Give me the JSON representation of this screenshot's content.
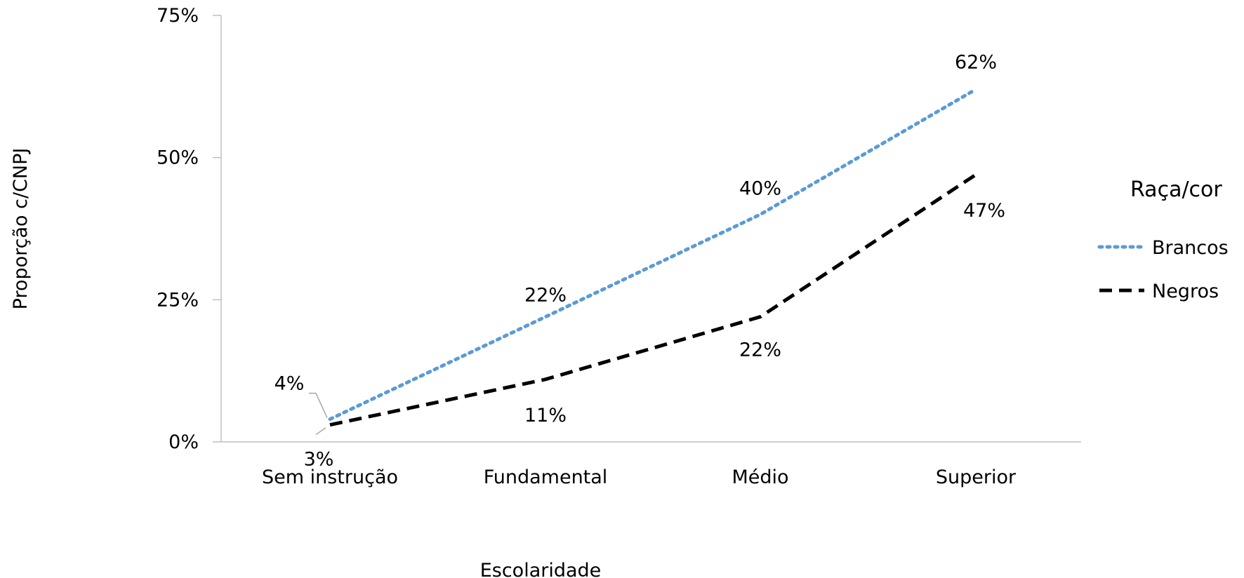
{
  "chart_data": {
    "type": "line",
    "title": "",
    "xlabel": "Escolaridade",
    "ylabel": "Proporção c/CNPJ",
    "categories": [
      "Sem instrução",
      "Fundamental",
      "Médio",
      "Superior"
    ],
    "ylim": [
      0,
      0.75
    ],
    "yticks": [
      0,
      0.25,
      0.5,
      0.75
    ],
    "ytick_labels": [
      "0%",
      "25%",
      "50%",
      "75%"
    ],
    "grid": false,
    "legend": {
      "title": "Raça/cor",
      "placement": "right"
    },
    "series": [
      {
        "name": "Brancos",
        "values": [
          0.04,
          0.22,
          0.4,
          0.62
        ],
        "labels": [
          "4%",
          "22%",
          "40%",
          "62%"
        ],
        "color": "#5B9BD5",
        "style": "dotted"
      },
      {
        "name": "Negros",
        "values": [
          0.03,
          0.11,
          0.22,
          0.47
        ],
        "labels": [
          "3%",
          "11%",
          "22%",
          "47%"
        ],
        "color": "#000000",
        "style": "dashed"
      }
    ]
  }
}
